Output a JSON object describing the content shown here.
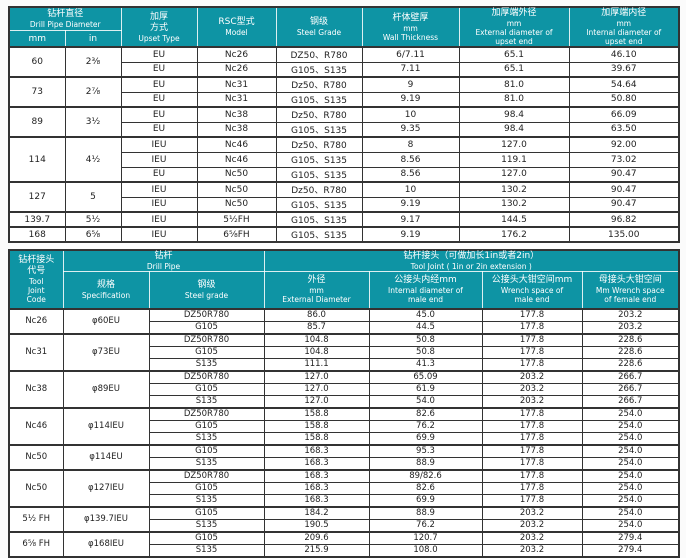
{
  "colors": {
    "header_bg": "#0e94a4",
    "header_text": "#ffffff",
    "border": "#333333",
    "body_text": "#222222",
    "page_bg": "#fbfbfb"
  },
  "table1": {
    "headers": {
      "diameter": {
        "zh": "钻杆直径",
        "en": "Drill Pipe Diameter"
      },
      "mm": "mm",
      "in": "in",
      "upset": {
        "zh": "加厚\n方式",
        "en": "Upset Type"
      },
      "model": {
        "zh": "RSC型式",
        "en": "Model"
      },
      "steel": {
        "zh": "钢级",
        "en": "Steel Grade"
      },
      "wall": {
        "zh": "杆体壁厚",
        "en": "mm\nWall Thickness"
      },
      "ext": {
        "zh": "加厚端外径",
        "en": "mm\nExternal diameter of\nupset end"
      },
      "int": {
        "zh": "加厚端内径",
        "en": "mm\nInternal diameter of\nupset end"
      }
    },
    "group_starts": [
      0,
      2,
      4,
      6,
      9,
      11,
      12
    ],
    "rows": [
      [
        {
          "t": "60",
          "rs": 2
        },
        {
          "t": "2⅜",
          "rs": 2
        },
        {
          "t": "EU"
        },
        {
          "t": "Nc26"
        },
        {
          "t": "DZ50、R780"
        },
        {
          "t": "6/7.11"
        },
        {
          "t": "65.1"
        },
        {
          "t": "46.10"
        }
      ],
      [
        {
          "t": "EU"
        },
        {
          "t": "Nc26"
        },
        {
          "t": "G105、S135"
        },
        {
          "t": "7.11"
        },
        {
          "t": "65.1"
        },
        {
          "t": "39.67"
        }
      ],
      [
        {
          "t": "73",
          "rs": 2
        },
        {
          "t": "2⅞",
          "rs": 2
        },
        {
          "t": "EU"
        },
        {
          "t": "Nc31"
        },
        {
          "t": "Dz50、R780"
        },
        {
          "t": "9"
        },
        {
          "t": "81.0"
        },
        {
          "t": "54.64"
        }
      ],
      [
        {
          "t": "EU"
        },
        {
          "t": "Nc31"
        },
        {
          "t": "G105、S135"
        },
        {
          "t": "9.19"
        },
        {
          "t": "81.0"
        },
        {
          "t": "50.80"
        }
      ],
      [
        {
          "t": "89",
          "rs": 2
        },
        {
          "t": "3½",
          "rs": 2
        },
        {
          "t": "EU"
        },
        {
          "t": "Nc38"
        },
        {
          "t": "Dz50、R780"
        },
        {
          "t": "10"
        },
        {
          "t": "98.4"
        },
        {
          "t": "66.09"
        }
      ],
      [
        {
          "t": "EU"
        },
        {
          "t": "Nc38"
        },
        {
          "t": "G105、S135"
        },
        {
          "t": "9.35"
        },
        {
          "t": "98.4"
        },
        {
          "t": "63.50"
        }
      ],
      [
        {
          "t": "114",
          "rs": 3
        },
        {
          "t": "4½",
          "rs": 3
        },
        {
          "t": "IEU"
        },
        {
          "t": "Nc46"
        },
        {
          "t": "Dz50、R780"
        },
        {
          "t": "8"
        },
        {
          "t": "127.0"
        },
        {
          "t": "92.00"
        }
      ],
      [
        {
          "t": "IEU"
        },
        {
          "t": "Nc46"
        },
        {
          "t": "G105、S135"
        },
        {
          "t": "8.56"
        },
        {
          "t": "119.1"
        },
        {
          "t": "73.02"
        }
      ],
      [
        {
          "t": "EU"
        },
        {
          "t": "Nc50"
        },
        {
          "t": "G105、S135"
        },
        {
          "t": "8.56"
        },
        {
          "t": "127.0"
        },
        {
          "t": "90.47"
        }
      ],
      [
        {
          "t": "127",
          "rs": 2
        },
        {
          "t": "5",
          "rs": 2
        },
        {
          "t": "IEU"
        },
        {
          "t": "Nc50"
        },
        {
          "t": "Dz50、R780"
        },
        {
          "t": "10"
        },
        {
          "t": "130.2"
        },
        {
          "t": "90.47"
        }
      ],
      [
        {
          "t": "IEU"
        },
        {
          "t": "Nc50"
        },
        {
          "t": "G105、S135"
        },
        {
          "t": "9.19"
        },
        {
          "t": "130.2"
        },
        {
          "t": "90.47"
        }
      ],
      [
        {
          "t": "139.7"
        },
        {
          "t": "5½"
        },
        {
          "t": "IEU"
        },
        {
          "t": "5½FH"
        },
        {
          "t": "G105、S135"
        },
        {
          "t": "9.17"
        },
        {
          "t": "144.5"
        },
        {
          "t": "96.82"
        }
      ],
      [
        {
          "t": "168"
        },
        {
          "t": "6⅝"
        },
        {
          "t": "IEU"
        },
        {
          "t": "6⅝FH"
        },
        {
          "t": "G105、S135"
        },
        {
          "t": "9.19"
        },
        {
          "t": "176.2"
        },
        {
          "t": "135.00"
        }
      ]
    ]
  },
  "table2": {
    "headers": {
      "code": {
        "zh": "钻杆接头\n代号",
        "en": "Tool\nJoint\nCode"
      },
      "drill_pipe_group": {
        "zh": "钻杆",
        "en": "Drill Pipe"
      },
      "spec": {
        "zh": "规格",
        "en": "Specification"
      },
      "steel": {
        "zh": "钢级",
        "en": "Steel grade"
      },
      "tool_joint_group": {
        "zh": "钻杆接头（可做加长1in或者2in）",
        "en": "Tool Joint ( 1in or 2in extension )"
      },
      "ext": {
        "zh": "外径",
        "en": "mm\nExternal Diameter"
      },
      "int_male": {
        "zh": "公接头内经mm",
        "en": "Internal diameter of\nmale end"
      },
      "wrench_male": {
        "zh": "公接头大钳空间mm",
        "en": "Wrench space of\nmale end"
      },
      "wrench_female": {
        "zh": "母接头大钳空间",
        "en": "Mm Wrench space\nof female end"
      }
    },
    "group_starts": [
      0,
      2,
      5,
      8,
      11,
      13,
      16,
      18
    ],
    "rows": [
      [
        {
          "t": "Nc26",
          "rs": 2
        },
        {
          "t": "φ60EU",
          "rs": 2
        },
        {
          "t": "DZ50R780"
        },
        {
          "t": "86.0"
        },
        {
          "t": "45.0"
        },
        {
          "t": "177.8"
        },
        {
          "t": "203.2"
        }
      ],
      [
        {
          "t": "G105"
        },
        {
          "t": "85.7"
        },
        {
          "t": "44.5"
        },
        {
          "t": "177.8"
        },
        {
          "t": "203.2"
        }
      ],
      [
        {
          "t": "Nc31",
          "rs": 3
        },
        {
          "t": "φ73EU",
          "rs": 3
        },
        {
          "t": "DZ50R780"
        },
        {
          "t": "104.8"
        },
        {
          "t": "50.8"
        },
        {
          "t": "177.8"
        },
        {
          "t": "228.6"
        }
      ],
      [
        {
          "t": "G105"
        },
        {
          "t": "104.8"
        },
        {
          "t": "50.8"
        },
        {
          "t": "177.8"
        },
        {
          "t": "228.6"
        }
      ],
      [
        {
          "t": "S135"
        },
        {
          "t": "111.1"
        },
        {
          "t": "41.3"
        },
        {
          "t": "177.8"
        },
        {
          "t": "228.6"
        }
      ],
      [
        {
          "t": "Nc38",
          "rs": 3
        },
        {
          "t": "φ89EU",
          "rs": 3
        },
        {
          "t": "DZ50R780"
        },
        {
          "t": "127.0"
        },
        {
          "t": "65.09"
        },
        {
          "t": "203.2"
        },
        {
          "t": "266.7"
        }
      ],
      [
        {
          "t": "G105"
        },
        {
          "t": "127.0"
        },
        {
          "t": "61.9"
        },
        {
          "t": "203.2"
        },
        {
          "t": "266.7"
        }
      ],
      [
        {
          "t": "S135"
        },
        {
          "t": "127.0"
        },
        {
          "t": "54.0"
        },
        {
          "t": "203.2"
        },
        {
          "t": "266.7"
        }
      ],
      [
        {
          "t": "Nc46",
          "rs": 3
        },
        {
          "t": "φ114IEU",
          "rs": 3
        },
        {
          "t": "DZ50R780"
        },
        {
          "t": "158.8"
        },
        {
          "t": "82.6"
        },
        {
          "t": "177.8"
        },
        {
          "t": "254.0"
        }
      ],
      [
        {
          "t": "G105"
        },
        {
          "t": "158.8"
        },
        {
          "t": "76.2"
        },
        {
          "t": "177.8"
        },
        {
          "t": "254.0"
        }
      ],
      [
        {
          "t": "S135"
        },
        {
          "t": "158.8"
        },
        {
          "t": "69.9"
        },
        {
          "t": "177.8"
        },
        {
          "t": "254.0"
        }
      ],
      [
        {
          "t": "Nc50",
          "rs": 2
        },
        {
          "t": "φ114EU",
          "rs": 2
        },
        {
          "t": "G105"
        },
        {
          "t": "168.3"
        },
        {
          "t": "95.3"
        },
        {
          "t": "177.8"
        },
        {
          "t": "254.0"
        }
      ],
      [
        {
          "t": "S135"
        },
        {
          "t": "168.3"
        },
        {
          "t": "88.9"
        },
        {
          "t": "177.8"
        },
        {
          "t": "254.0"
        }
      ],
      [
        {
          "t": "Nc50",
          "rs": 3
        },
        {
          "t": "φ127IEU",
          "rs": 3
        },
        {
          "t": "DZ50R780"
        },
        {
          "t": "168.3"
        },
        {
          "t": "89/82.6"
        },
        {
          "t": "177.8"
        },
        {
          "t": "254.0"
        }
      ],
      [
        {
          "t": "G105"
        },
        {
          "t": "168.3"
        },
        {
          "t": "82.6"
        },
        {
          "t": "177.8"
        },
        {
          "t": "254.0"
        }
      ],
      [
        {
          "t": "S135"
        },
        {
          "t": "168.3"
        },
        {
          "t": "69.9"
        },
        {
          "t": "177.8"
        },
        {
          "t": "254.0"
        }
      ],
      [
        {
          "t": "5½ FH",
          "rs": 2
        },
        {
          "t": "φ139.7IEU",
          "rs": 2
        },
        {
          "t": "G105"
        },
        {
          "t": "184.2"
        },
        {
          "t": "88.9"
        },
        {
          "t": "203.2"
        },
        {
          "t": "254.0"
        }
      ],
      [
        {
          "t": "S135"
        },
        {
          "t": "190.5"
        },
        {
          "t": "76.2"
        },
        {
          "t": "203.2"
        },
        {
          "t": "254.0"
        }
      ],
      [
        {
          "t": "6⅝ FH",
          "rs": 2
        },
        {
          "t": "φ168IEU",
          "rs": 2
        },
        {
          "t": "G105"
        },
        {
          "t": "209.6"
        },
        {
          "t": "120.7"
        },
        {
          "t": "203.2"
        },
        {
          "t": "279.4"
        }
      ],
      [
        {
          "t": "S135"
        },
        {
          "t": "215.9"
        },
        {
          "t": "108.0"
        },
        {
          "t": "203.2"
        },
        {
          "t": "279.4"
        }
      ]
    ]
  }
}
